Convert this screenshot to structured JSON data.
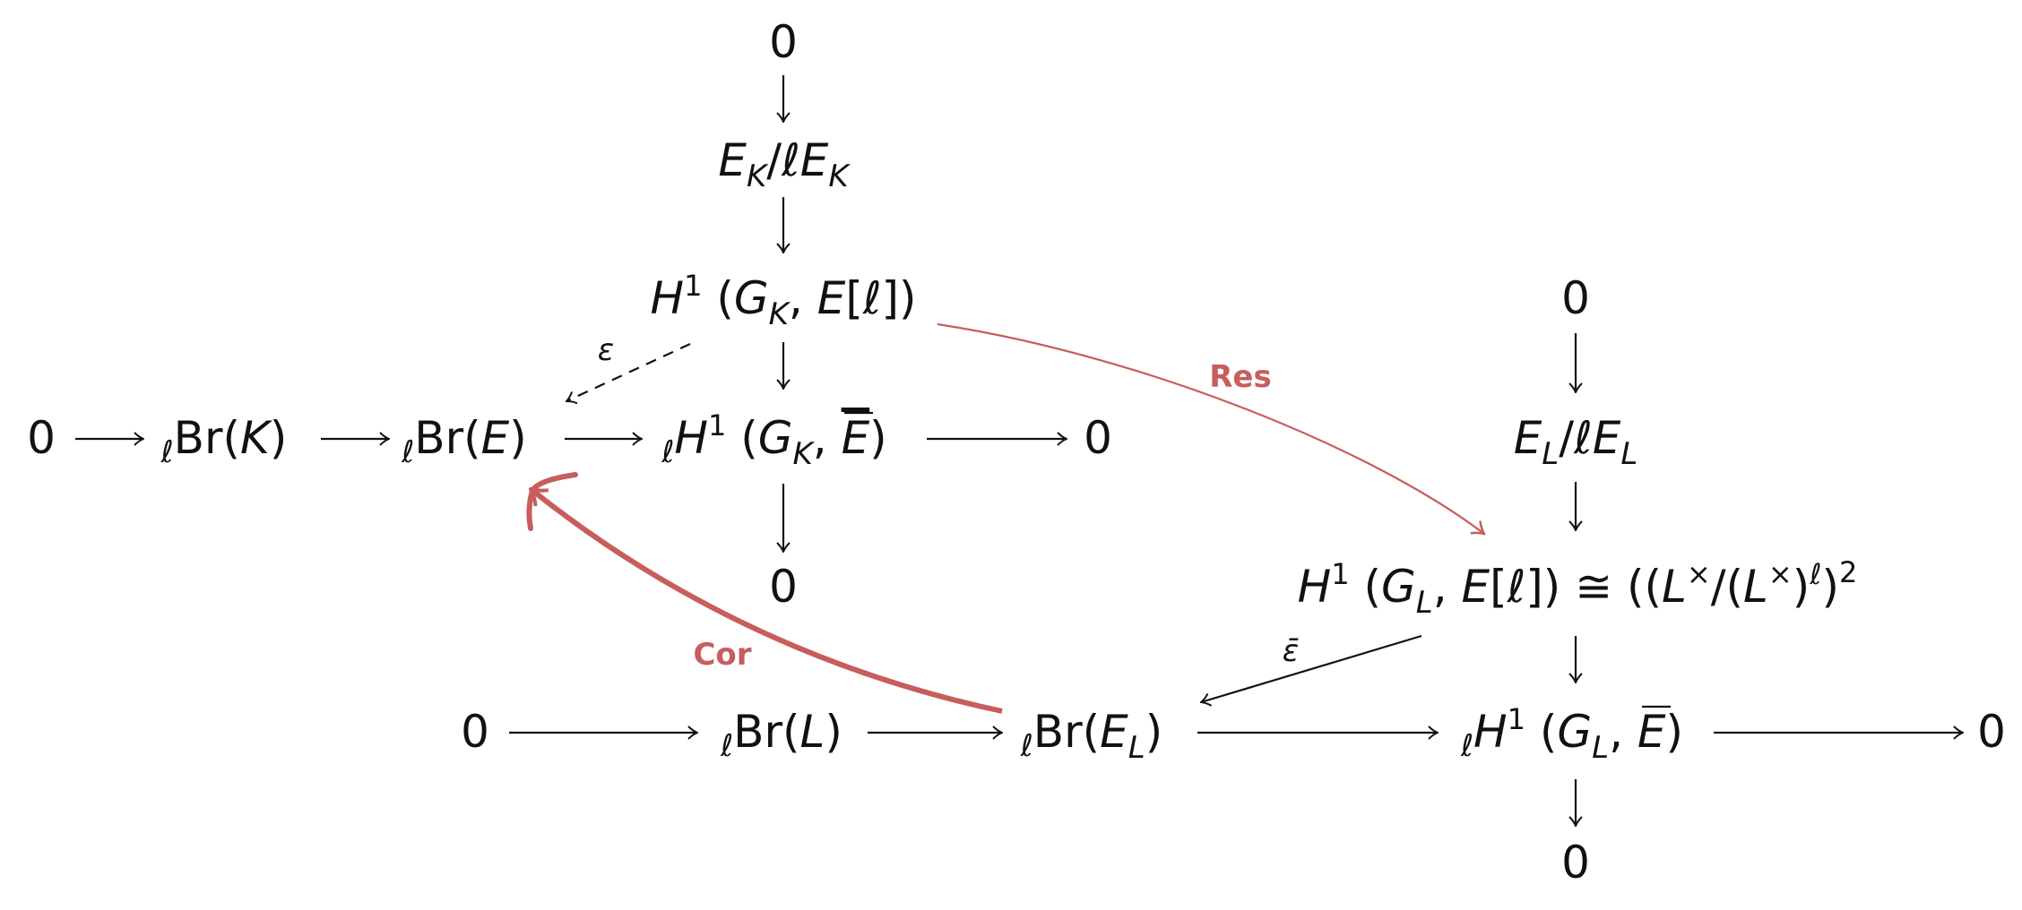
{
  "diagram": {
    "nodes": {
      "top_zero": "0",
      "ek_quot": {
        "e": "E",
        "k": "K",
        "slash": "/",
        "ell": "ℓ"
      },
      "h1_gk_el": {
        "h": "H",
        "sup": "1",
        "open": " (",
        "g": "G",
        "k": "K",
        "comma": ", ",
        "e": "E",
        "brk": "[ℓ])"
      },
      "row1_zero_left": "0",
      "br_k": {
        "ell": "ℓ",
        "br": "Br(",
        "k": "K",
        "close": ")"
      },
      "br_e": {
        "ell": "ℓ",
        "br": "Br(",
        "e": "E",
        "close": ")"
      },
      "h1_gk_ebar": {
        "ell": "ℓ",
        "h": "H",
        "sup": "1",
        "open": " (",
        "g": "G",
        "k": "K",
        "comma": ", ",
        "e": "E",
        "close": ")"
      },
      "row1_zero_right": "0",
      "h1_below_zero": "0",
      "right_top_zero": "0",
      "el_quot": {
        "e": "E",
        "l": "L",
        "slash": "/",
        "ell": "ℓ"
      },
      "h1_gl_el": {
        "h": "H",
        "sup": "1",
        "open": " (",
        "g": "G",
        "l": "L",
        "comma": ", ",
        "e": "E",
        "brk": "[ℓ]) ≅ ((",
        "lx": "L",
        "times": "×",
        "mid": "/(",
        "lx2": "L",
        "times2": "×",
        "close": ")",
        "ell": "ℓ",
        "end": ")",
        "sq": "2"
      },
      "row2_zero_left": "0",
      "br_l": {
        "ell": "ℓ",
        "br": "Br(",
        "l": "L",
        "close": ")"
      },
      "br_el": {
        "ell": "ℓ",
        "br": "Br(",
        "e": "E",
        "l": "L",
        "close": ")"
      },
      "h1_gl_ebar": {
        "ell": "ℓ",
        "h": "H",
        "sup": "1",
        "open": " (",
        "g": "G",
        "l": "L",
        "comma": ", ",
        "e": "E",
        "close": ")"
      },
      "row2_zero_right": "0",
      "bottom_zero": "0"
    },
    "labels": {
      "epsilon": "ε",
      "epsilon_bar": "ε̄",
      "res": "Res",
      "cor": "Cor"
    },
    "colors": {
      "ink": "#111111",
      "accent": "#c75d5d"
    }
  }
}
